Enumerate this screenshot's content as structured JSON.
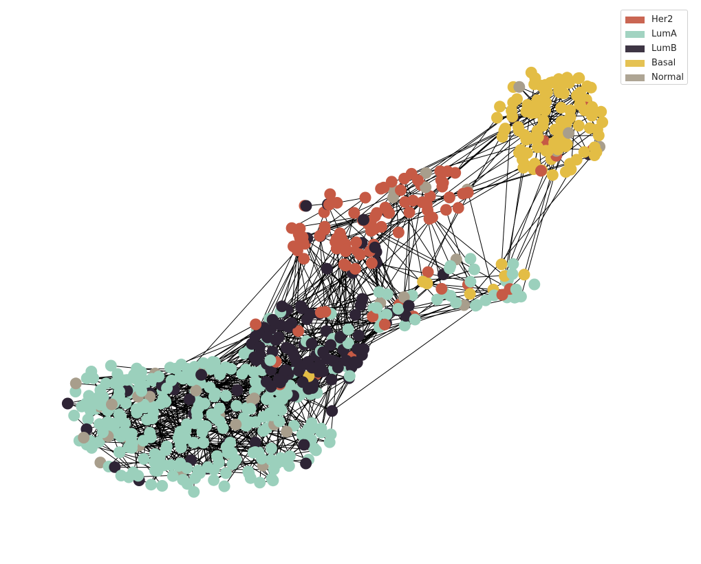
{
  "legend": {
    "items": [
      {
        "label": "Her2",
        "color": "#c65a45"
      },
      {
        "label": "LumA",
        "color": "#9bd0bc"
      },
      {
        "label": "LumB",
        "color": "#2e2435"
      },
      {
        "label": "Basal",
        "color": "#e3bd45"
      },
      {
        "label": "Normal",
        "color": "#a89e8c"
      }
    ]
  },
  "colors": {
    "edge": "#000000",
    "background": "#ffffff"
  }
}
